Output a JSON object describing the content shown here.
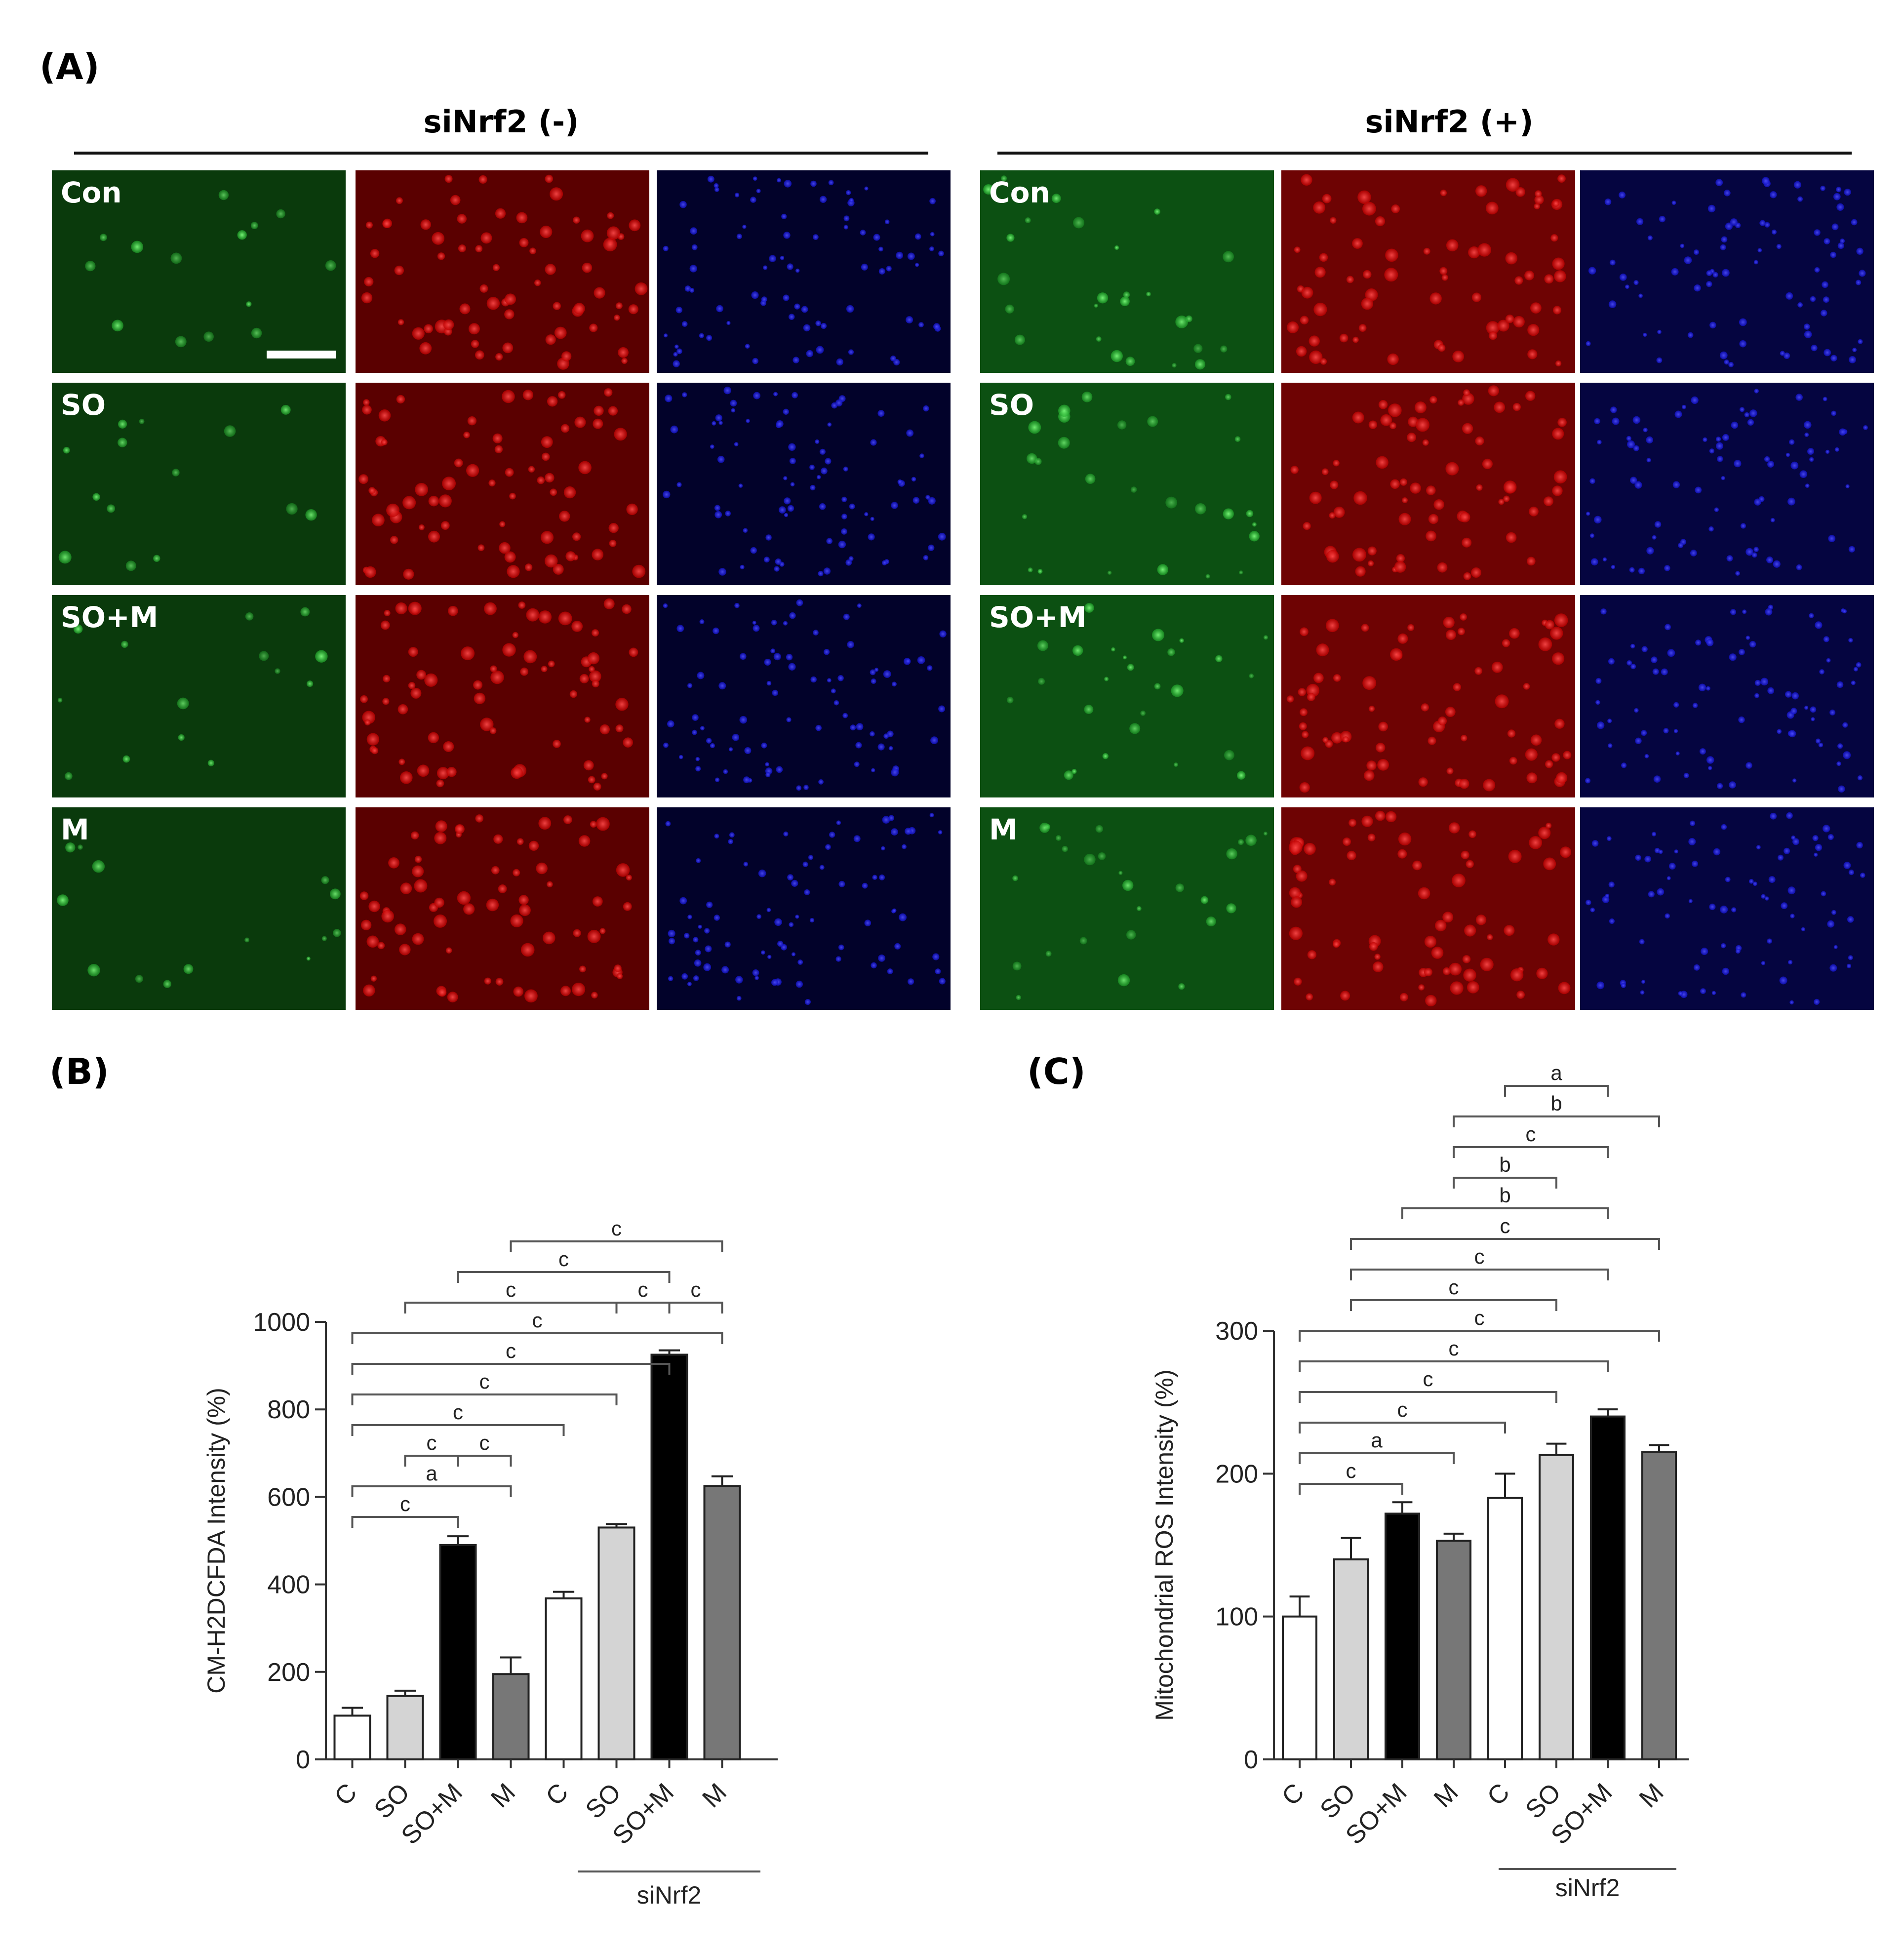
{
  "panel_a": {
    "label": "(A)",
    "groups": [
      {
        "title": "siNrf2 (-)"
      },
      {
        "title": "siNrf2 (+)"
      }
    ],
    "row_labels": [
      "Con",
      "SO",
      "SO+M",
      "M"
    ],
    "channel_colors": [
      "#0c7a14",
      "#cc1010",
      "#1414d8"
    ]
  },
  "panel_b": {
    "label": "(B)",
    "group_label": "siNrf2"
  },
  "panel_c": {
    "label": "(C)",
    "group_label": "siNrf2"
  },
  "chart_data": [
    {
      "type": "bar",
      "ylabel": "CM-H2DCFDA Intensity (%)",
      "ylim": [
        0,
        1000
      ],
      "yticks": [
        0,
        200,
        400,
        600,
        800,
        1000
      ],
      "categories": [
        "C",
        "SO",
        "SO+M",
        "M",
        "C",
        "SO",
        "SO+M",
        "M"
      ],
      "values": [
        100,
        145,
        490,
        195,
        368,
        530,
        925,
        625
      ],
      "errors": [
        18,
        12,
        20,
        38,
        15,
        8,
        10,
        22
      ],
      "bar_colors": [
        "#ffffff",
        "#d4d4d4",
        "#000000",
        "#777777",
        "#ffffff",
        "#d4d4d4",
        "#000000",
        "#777777"
      ],
      "annotations": [
        {
          "from": 0,
          "to": 2,
          "label": "c",
          "level": 0
        },
        {
          "from": 0,
          "to": 3,
          "label": "a",
          "level": 1
        },
        {
          "from": 1,
          "to": 2,
          "label": "c",
          "level": 2
        },
        {
          "from": 2,
          "to": 3,
          "label": "c",
          "level": 2
        },
        {
          "from": 0,
          "to": 4,
          "label": "c",
          "level": 3
        },
        {
          "from": 0,
          "to": 5,
          "label": "c",
          "level": 4
        },
        {
          "from": 0,
          "to": 6,
          "label": "c",
          "level": 5
        },
        {
          "from": 0,
          "to": 7,
          "label": "c",
          "level": 6
        },
        {
          "from": 1,
          "to": 5,
          "label": "c",
          "level": 7
        },
        {
          "from": 5,
          "to": 6,
          "label": "c",
          "level": 7
        },
        {
          "from": 6,
          "to": 7,
          "label": "c",
          "level": 7
        },
        {
          "from": 2,
          "to": 6,
          "label": "c",
          "level": 8
        },
        {
          "from": 3,
          "to": 7,
          "label": "c",
          "level": 9
        }
      ]
    },
    {
      "type": "bar",
      "ylabel": "Mitochondrial ROS Intensity (%)",
      "ylim": [
        0,
        300
      ],
      "yticks": [
        0,
        100,
        200,
        300
      ],
      "categories": [
        "C",
        "SO",
        "SO+M",
        "M",
        "C",
        "SO",
        "SO+M",
        "M"
      ],
      "values": [
        100,
        140,
        172,
        153,
        183,
        213,
        240,
        215
      ],
      "errors": [
        14,
        15,
        8,
        5,
        17,
        8,
        5,
        5
      ],
      "bar_colors": [
        "#ffffff",
        "#d4d4d4",
        "#000000",
        "#777777",
        "#ffffff",
        "#d4d4d4",
        "#000000",
        "#777777"
      ],
      "annotations": [
        {
          "from": 0,
          "to": 2,
          "label": "c",
          "level": 0
        },
        {
          "from": 0,
          "to": 3,
          "label": "a",
          "level": 1
        },
        {
          "from": 0,
          "to": 4,
          "label": "c",
          "level": 2
        },
        {
          "from": 0,
          "to": 5,
          "label": "c",
          "level": 3
        },
        {
          "from": 0,
          "to": 6,
          "label": "c",
          "level": 4
        },
        {
          "from": 0,
          "to": 7,
          "label": "c",
          "level": 5
        },
        {
          "from": 1,
          "to": 5,
          "label": "c",
          "level": 6
        },
        {
          "from": 1,
          "to": 6,
          "label": "c",
          "level": 7
        },
        {
          "from": 1,
          "to": 7,
          "label": "c",
          "level": 8
        },
        {
          "from": 2,
          "to": 6,
          "label": "b",
          "level": 9
        },
        {
          "from": 3,
          "to": 5,
          "label": "b",
          "level": 10
        },
        {
          "from": 3,
          "to": 6,
          "label": "c",
          "level": 11
        },
        {
          "from": 3,
          "to": 7,
          "label": "b",
          "level": 12
        },
        {
          "from": 4,
          "to": 6,
          "label": "a",
          "level": 13
        }
      ]
    }
  ]
}
